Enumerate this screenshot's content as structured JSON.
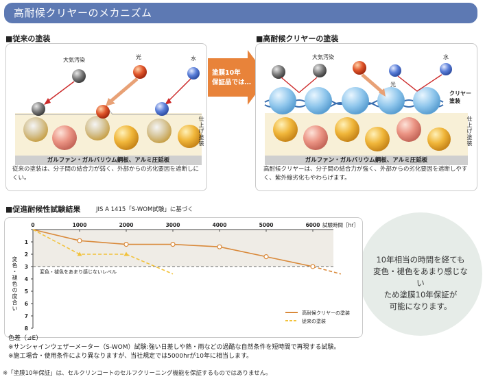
{
  "header": {
    "title": "高耐候クリヤーのメカニズム"
  },
  "left_panel": {
    "heading": "■従来の塗装",
    "labels": {
      "pollution": "大気汚染",
      "light": "光",
      "water": "水"
    },
    "substrate": "ガルファン・ガルバリウム鋼板、アルミ圧延板",
    "side_label": "仕上げ塗装",
    "caption": "従来の塗装は、分子間の結合力が弱く、外部からの劣化要因を遮断しにくい。"
  },
  "arrow": {
    "text_line1": "塗膜10年",
    "text_line2": "保証品では…"
  },
  "right_panel": {
    "heading": "■高耐候クリヤーの塗装",
    "labels": {
      "pollution": "大気汚染",
      "light": "光",
      "water": "水",
      "clear_coat": "クリヤー塗装"
    },
    "substrate": "ガルファン・ガルバリウム鋼板、アルミ圧延板",
    "side_label": "仕上げ塗装",
    "caption": "高耐候クリヤーは、分子間の結合力が強く、外部からの劣化要因を遮断しやすく、紫外線劣化もやわらげます。"
  },
  "test_section": {
    "heading": "■促進耐候性試験結果",
    "standard": "JIS A 1415「S-WOM試験」に基づく"
  },
  "chart_data": {
    "type": "line",
    "title": "促進耐候性試験結果",
    "xlabel": "試験時間［hr］",
    "ylabel": "変色・褪色の度合い",
    "x_ticks": [
      0,
      1000,
      2000,
      3000,
      4000,
      5000,
      6000
    ],
    "y_ticks": [
      0,
      1,
      2,
      3,
      4,
      5,
      6,
      7,
      8
    ],
    "xlim": [
      0,
      6000
    ],
    "ylim": [
      0,
      8
    ],
    "threshold": {
      "value": 3,
      "label": "変色・褪色をあまり感じないレベル"
    },
    "series": [
      {
        "name": "高耐候クリヤーの塗装",
        "color": "#d9893a",
        "style": "solid",
        "x": [
          0,
          1000,
          2000,
          3000,
          4000,
          5000,
          6000
        ],
        "y": [
          0,
          0.9,
          1.2,
          1.2,
          1.4,
          2.2,
          3.0
        ],
        "extension": {
          "x": 6600,
          "y": 3.6
        }
      },
      {
        "name": "従来の塗装",
        "color": "#f2c23a",
        "style": "dashed",
        "x": [
          0,
          1000,
          2000
        ],
        "y": [
          0,
          2.0,
          2.0
        ],
        "extension": {
          "x": 3000,
          "y": 3.6
        }
      }
    ],
    "corner_label": "色差（⊿E）"
  },
  "summary": {
    "lines": [
      "10年相当の時間を経ても",
      "変色・褪色をあまり感じない",
      "ため塗膜10年保証が",
      "可能になります。"
    ]
  },
  "notes": [
    "色差（⊿E）",
    "※サンシャインウェザーメーター（S-WOM）試験:強い日差しや熱・雨などの過酷な自然条件を短時間で再現する試験。",
    "※施工場合・使用条件により異なりますが、当社規定では5000hrが10年に相当します。"
  ],
  "footer": "※「塗膜10年保証」は、セルクリンコートのセルフクリーニング機能を保証するものではありません。",
  "colors": {
    "header_bg": "#5d79b3",
    "arrow": "#e8833a",
    "layer_bg": "#f8f0d7"
  }
}
